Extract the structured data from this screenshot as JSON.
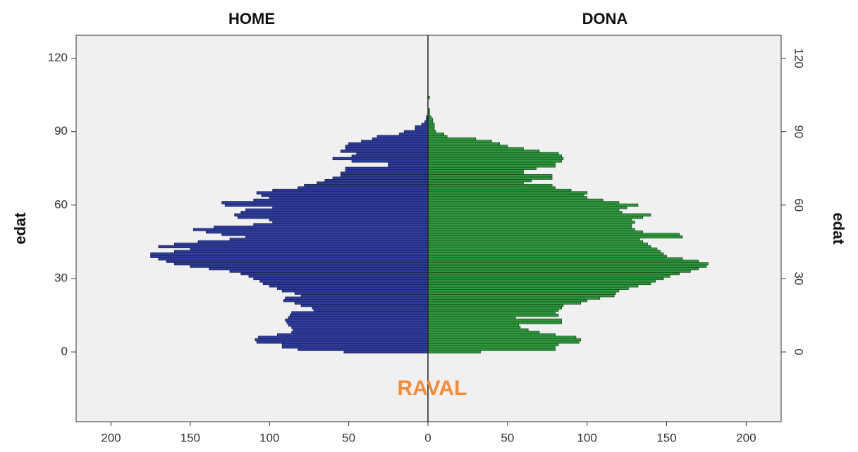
{
  "chart_data": [
    {
      "type": "bar",
      "orientation": "horizontal",
      "title": "HOME",
      "y_label": "edat",
      "annotation": "RAVAL",
      "color": "#2f3e9e",
      "y_axis_side": "left",
      "xlim": [
        222,
        0
      ],
      "xticks": [
        200,
        150,
        100,
        50
      ],
      "ylim": [
        -28.5,
        129.4
      ],
      "yticks": [
        0,
        30,
        60,
        90,
        120
      ],
      "y": [
        0,
        1,
        2,
        3,
        4,
        5,
        6,
        7,
        8,
        9,
        10,
        11,
        12,
        13,
        14,
        15,
        16,
        17,
        18,
        19,
        20,
        21,
        22,
        23,
        24,
        25,
        26,
        27,
        28,
        29,
        30,
        31,
        32,
        33,
        34,
        35,
        36,
        37,
        38,
        39,
        40,
        41,
        42,
        43,
        44,
        45,
        46,
        47,
        48,
        49,
        50,
        51,
        52,
        53,
        54,
        55,
        56,
        57,
        58,
        59,
        60,
        61,
        62,
        63,
        64,
        65,
        66,
        67,
        68,
        69,
        70,
        71,
        72,
        73,
        74,
        75,
        76,
        77,
        78,
        79,
        80,
        81,
        82,
        83,
        84,
        85,
        86,
        87,
        88,
        89,
        90,
        91,
        92,
        93,
        94,
        95,
        96,
        97,
        98,
        99,
        100,
        101,
        102,
        103,
        104,
        105
      ],
      "values": [
        53,
        82,
        92,
        92,
        108,
        109,
        107,
        95,
        86,
        85,
        86,
        88,
        89,
        90,
        88,
        87,
        86,
        72,
        73,
        80,
        84,
        91,
        90,
        80,
        84,
        92,
        95,
        100,
        104,
        106,
        110,
        113,
        118,
        125,
        138,
        150,
        160,
        165,
        170,
        175,
        175,
        160,
        150,
        170,
        160,
        145,
        125,
        115,
        130,
        140,
        148,
        135,
        110,
        98,
        100,
        120,
        122,
        118,
        115,
        98,
        128,
        130,
        110,
        100,
        105,
        108,
        98,
        82,
        78,
        70,
        65,
        60,
        55,
        55,
        52,
        52,
        25,
        25,
        48,
        60,
        48,
        45,
        55,
        52,
        52,
        50,
        42,
        35,
        32,
        18,
        15,
        8,
        8,
        4,
        2,
        1,
        1,
        0,
        0,
        0,
        0,
        0,
        0,
        0,
        0,
        0
      ]
    },
    {
      "type": "bar",
      "orientation": "horizontal",
      "title": "DONA",
      "y_label": "edat",
      "color": "#2f9a3d",
      "y_axis_side": "right",
      "xlim": [
        0,
        222
      ],
      "xticks": [
        0,
        50,
        100,
        150,
        200
      ],
      "ylim": [
        -28.5,
        129.4
      ],
      "yticks": [
        0,
        30,
        60,
        90,
        120
      ],
      "y": [
        0,
        1,
        2,
        3,
        4,
        5,
        6,
        7,
        8,
        9,
        10,
        11,
        12,
        13,
        14,
        15,
        16,
        17,
        18,
        19,
        20,
        21,
        22,
        23,
        24,
        25,
        26,
        27,
        28,
        29,
        30,
        31,
        32,
        33,
        34,
        35,
        36,
        37,
        38,
        39,
        40,
        41,
        42,
        43,
        44,
        45,
        46,
        47,
        48,
        49,
        50,
        51,
        52,
        53,
        54,
        55,
        56,
        57,
        58,
        59,
        60,
        61,
        62,
        63,
        64,
        65,
        66,
        67,
        68,
        69,
        70,
        71,
        72,
        73,
        74,
        75,
        76,
        77,
        78,
        79,
        80,
        81,
        82,
        83,
        84,
        85,
        86,
        87,
        88,
        89,
        90,
        91,
        92,
        93,
        94,
        95,
        96,
        97,
        98,
        99,
        100,
        101,
        102,
        103,
        104,
        105
      ],
      "values": [
        33,
        80,
        80,
        82,
        95,
        96,
        93,
        80,
        70,
        63,
        58,
        57,
        84,
        84,
        55,
        82,
        80,
        82,
        84,
        85,
        96,
        100,
        108,
        117,
        118,
        120,
        126,
        132,
        140,
        143,
        148,
        152,
        158,
        165,
        170,
        175,
        176,
        170,
        160,
        150,
        148,
        146,
        144,
        140,
        138,
        135,
        133,
        160,
        158,
        135,
        130,
        128,
        128,
        130,
        128,
        135,
        140,
        122,
        120,
        125,
        132,
        120,
        110,
        100,
        98,
        100,
        90,
        80,
        78,
        60,
        65,
        78,
        78,
        60,
        60,
        68,
        80,
        80,
        84,
        85,
        84,
        82,
        70,
        60,
        50,
        45,
        40,
        30,
        12,
        10,
        5,
        4,
        4,
        4,
        3,
        3,
        2,
        1,
        1,
        1,
        0,
        0,
        0,
        0,
        1,
        0
      ]
    }
  ]
}
